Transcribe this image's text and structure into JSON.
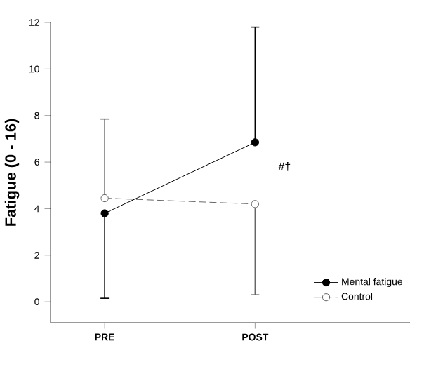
{
  "chart_data": {
    "type": "line",
    "ylabel": "Fatigue (0 - 16)",
    "categories": [
      "PRE",
      "POST"
    ],
    "series": [
      {
        "name": "Mental fatigue",
        "color": "#000000",
        "values": [
          3.8,
          6.85
        ],
        "errors": [
          [
            0.15,
            3.8
          ],
          [
            6.85,
            11.8
          ]
        ],
        "marker": "circle",
        "line_style": "solid"
      },
      {
        "name": "Control",
        "color": "#666666",
        "values": [
          4.45,
          4.2
        ],
        "errors": [
          [
            4.45,
            7.85
          ],
          [
            0.3,
            4.2
          ]
        ],
        "marker": "circle",
        "line_style": "dashed"
      }
    ],
    "ylim": [
      -0.9,
      12
    ],
    "yticks": [
      0,
      2,
      4,
      6,
      8,
      10,
      12
    ],
    "legend": "bottom right",
    "annotations": [
      "#†"
    ]
  }
}
